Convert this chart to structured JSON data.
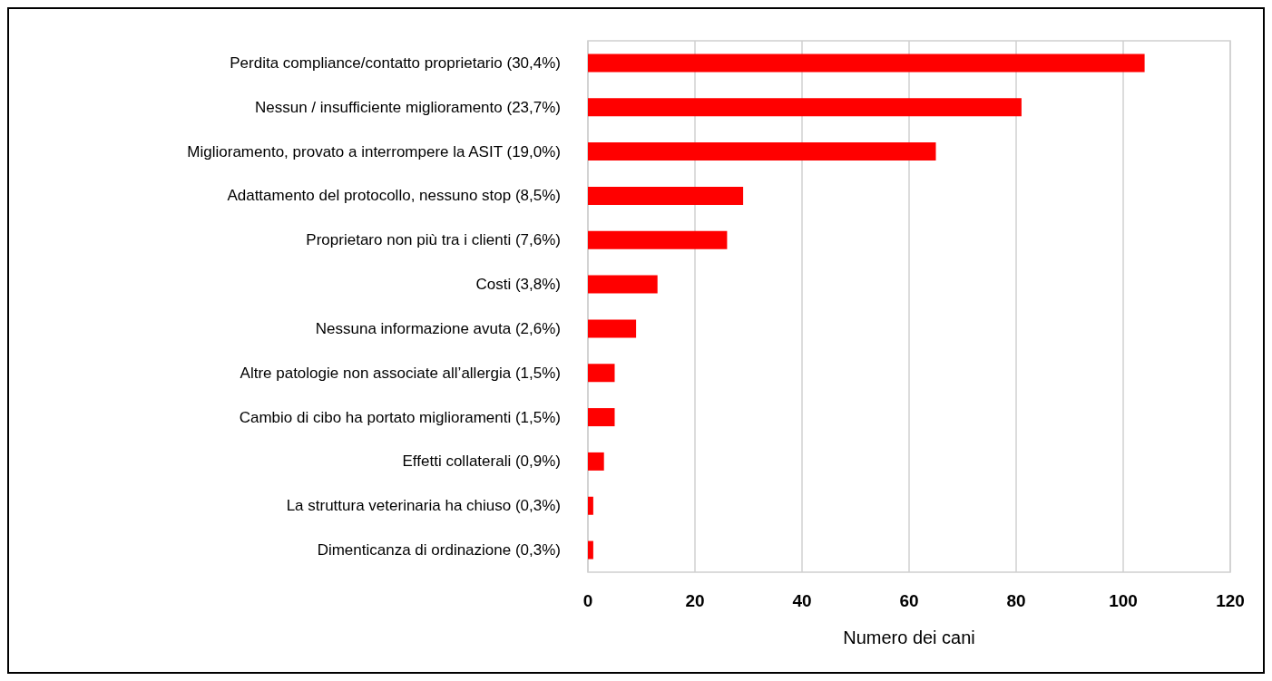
{
  "chart_data": {
    "type": "bar",
    "orientation": "horizontal",
    "xlabel": "Numero dei cani",
    "categories": [
      "Perdita compliance/contatto proprietario (30,4%)",
      "Nessun / insufficiente miglioramento (23,7%)",
      "Miglioramento, provato a interrompere la ASIT (19,0%)",
      "Adattamento del protocollo, nessuno stop (8,5%)",
      "Proprietaro non più tra i clienti (7,6%)",
      "Costi (3,8%)",
      "Nessuna informazione avuta (2,6%)",
      "Altre patologie non associate all’allergia (1,5%)",
      "Cambio di cibo ha portato miglioramenti (1,5%)",
      "Effetti collaterali (0,9%)",
      "La struttura veterinaria ha chiuso (0,3%)",
      "Dimenticanza di ordinazione (0,3%)"
    ],
    "values": [
      104,
      81,
      65,
      29,
      26,
      13,
      9,
      5,
      5,
      3,
      1,
      1
    ],
    "color": "#ff0000",
    "xlim": [
      0,
      120
    ],
    "xticks": [
      0,
      20,
      40,
      60,
      80,
      100,
      120
    ],
    "grid": "x"
  }
}
